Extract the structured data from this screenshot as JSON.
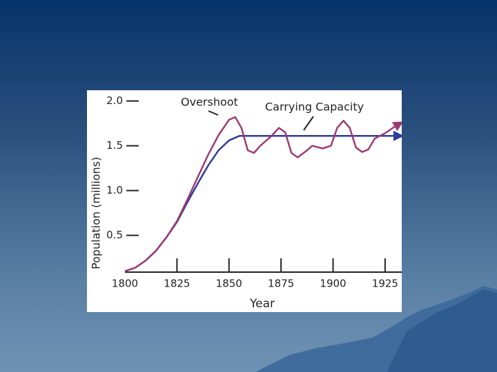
{
  "chart_data": {
    "type": "line",
    "axis_label_y": "Population (millions)",
    "axis_label_x": "Year",
    "annotations": [
      "Overshoot",
      "Carrying Capacity"
    ],
    "xlim": [
      1800,
      1933
    ],
    "ylim": [
      0.09,
      2.12
    ],
    "xticks": [
      1800,
      1825,
      1850,
      1875,
      1900,
      1925
    ],
    "yticks": [
      {
        "value": 0.5,
        "label": "0.5"
      },
      {
        "value": 1.0,
        "label": "1.0"
      },
      {
        "value": 1.5,
        "label": "1.5"
      },
      {
        "value": 2.0,
        "label": "2.0"
      }
    ],
    "series": [
      {
        "color": "#2e3a9c",
        "x": [
          1800,
          1805,
          1810,
          1815,
          1820,
          1825,
          1830,
          1835,
          1840,
          1845,
          1850,
          1855,
          1933
        ],
        "values": [
          0.1,
          0.14,
          0.22,
          0.33,
          0.48,
          0.65,
          0.87,
          1.08,
          1.28,
          1.45,
          1.56,
          1.61,
          1.61
        ]
      },
      {
        "color": "#9c3a74",
        "x": [
          1800,
          1805,
          1810,
          1815,
          1820,
          1825,
          1830,
          1835,
          1840,
          1845,
          1850,
          1853,
          1856,
          1859,
          1862,
          1865,
          1870,
          1874,
          1877,
          1880,
          1883,
          1887,
          1890,
          1895,
          1899,
          1902,
          1905,
          1908,
          1911,
          1914,
          1917,
          1920,
          1925,
          1930,
          1933
        ],
        "values": [
          0.1,
          0.14,
          0.22,
          0.33,
          0.48,
          0.66,
          0.9,
          1.15,
          1.4,
          1.62,
          1.79,
          1.82,
          1.7,
          1.45,
          1.42,
          1.5,
          1.6,
          1.7,
          1.65,
          1.42,
          1.37,
          1.44,
          1.5,
          1.47,
          1.5,
          1.7,
          1.78,
          1.7,
          1.48,
          1.43,
          1.46,
          1.58,
          1.64,
          1.72,
          1.76
        ]
      }
    ]
  }
}
